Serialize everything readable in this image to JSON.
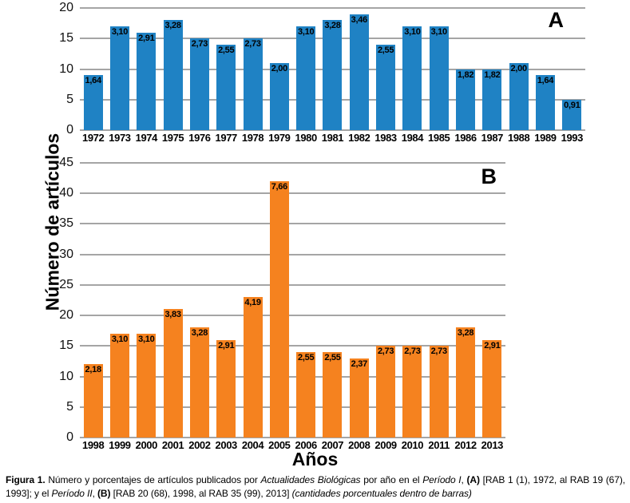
{
  "chart_data": [
    {
      "type": "bar",
      "panel_label": "A",
      "title": "",
      "xlabel": "Años",
      "ylabel": "Número de artículos",
      "categories": [
        "1972",
        "1973",
        "1974",
        "1975",
        "1976",
        "1977",
        "1978",
        "1979",
        "1980",
        "1981",
        "1982",
        "1983",
        "1984",
        "1985",
        "1986",
        "1987",
        "1988",
        "1989",
        "1993"
      ],
      "values": [
        9,
        17,
        16,
        18,
        15,
        14,
        15,
        11,
        17,
        18,
        19,
        14,
        17,
        17,
        10,
        10,
        11,
        9,
        5
      ],
      "bar_labels": [
        "1,64",
        "3,10",
        "2,91",
        "3,28",
        "2,73",
        "2,55",
        "2,73",
        "2,00",
        "3,10",
        "3,28",
        "3,46",
        "2,55",
        "3,10",
        "3,10",
        "1,82",
        "1,82",
        "2,00",
        "1,64",
        "0,91"
      ],
      "ylim": [
        0,
        20
      ],
      "ytick_step": 5,
      "grid": true,
      "legend": "none",
      "bar_color": "#1f82c4"
    },
    {
      "type": "bar",
      "panel_label": "B",
      "title": "",
      "xlabel": "Años",
      "ylabel": "Número de artículos",
      "categories": [
        "1998",
        "1999",
        "2000",
        "2001",
        "2002",
        "2003",
        "2004",
        "2005",
        "2006",
        "2007",
        "2008",
        "2009",
        "2010",
        "2011",
        "2012",
        "2013"
      ],
      "values": [
        12,
        17,
        17,
        21,
        18,
        16,
        23,
        42,
        14,
        14,
        13,
        15,
        15,
        15,
        18,
        16
      ],
      "bar_labels": [
        "2,18",
        "3,10",
        "3,10",
        "3,83",
        "3,28",
        "2,91",
        "4,19",
        "7,66",
        "2,55",
        "2,55",
        "2,37",
        "2,73",
        "2,73",
        "2,73",
        "3,28",
        "2,91"
      ],
      "ylim": [
        0,
        45
      ],
      "ytick_step": 5,
      "grid": true,
      "legend": "none",
      "bar_color": "#f5821f"
    }
  ],
  "caption": {
    "label": "Figura 1.",
    "s1": " Número y porcentajes de artículos publicados por ",
    "journal": "Actualidades Biológicas",
    "s2": " por año en el ",
    "period1": "Período I",
    "s3": ", ",
    "a_bold": "(A)",
    "s4": " [RAB 1 (1), 1972, al RAB 19 (67), 1993]; y el ",
    "period2": "Período II",
    "s5": ", ",
    "b_bold": "(B)",
    "s6": " [RAB 20 (68), 1998, al RAB 35 (99), 2013] ",
    "note": "(cantidades porcentuales dentro de barras)"
  }
}
